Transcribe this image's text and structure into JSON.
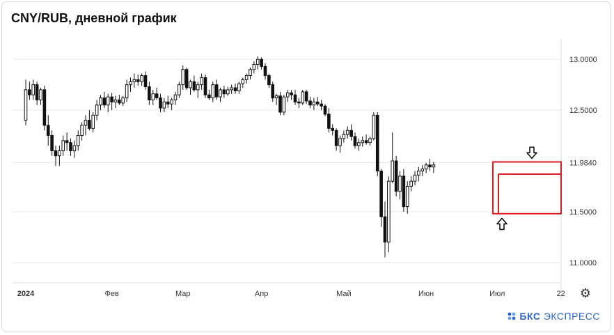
{
  "title": "CNY/RUB, дневной график",
  "brand": {
    "prefix": "БКС",
    "suffix": "ЭКСПРЕСС",
    "color": "#2d66c8"
  },
  "colors": {
    "candle": "#111111",
    "highlight": "#e01b24",
    "grid": "#e6e6e6",
    "axis_text": "#333333"
  },
  "icons": {
    "settings": "gear-icon",
    "arrow_down": "arrow-down-icon",
    "arrow_up": "arrow-up-icon",
    "brand_logo": "bks-logo-icon"
  },
  "chart_data": {
    "type": "candlestick",
    "title": "CNY/RUB, дневной график",
    "y_axis": {
      "position": "right",
      "ticks": [
        13.0,
        12.5,
        11.984,
        11.5,
        11.0
      ],
      "tick_labels": [
        "13.0000",
        "12.5000",
        "11.9840",
        "11.5000",
        "11.0000"
      ],
      "ylim": [
        10.8,
        13.2
      ]
    },
    "x_axis": {
      "tick_labels": [
        "2024",
        "Фев",
        "Мар",
        "Апр",
        "Май",
        "Июн",
        "Июл",
        "22"
      ],
      "tick_index": [
        0,
        23,
        42,
        63,
        85,
        107,
        126,
        143
      ]
    },
    "ohlc": [
      [
        12.4,
        12.8,
        12.35,
        12.7
      ],
      [
        12.7,
        12.78,
        12.6,
        12.65
      ],
      [
        12.65,
        12.8,
        12.6,
        12.75
      ],
      [
        12.75,
        12.78,
        12.55,
        12.6
      ],
      [
        12.6,
        12.72,
        12.55,
        12.7
      ],
      [
        12.7,
        12.74,
        12.3,
        12.35
      ],
      [
        12.35,
        12.45,
        12.15,
        12.25
      ],
      [
        12.25,
        12.3,
        12.05,
        12.1
      ],
      [
        12.1,
        12.15,
        11.95,
        12.05
      ],
      [
        12.05,
        12.15,
        11.95,
        12.1
      ],
      [
        12.1,
        12.25,
        12.05,
        12.2
      ],
      [
        12.2,
        12.28,
        12.1,
        12.18
      ],
      [
        12.18,
        12.22,
        12.05,
        12.1
      ],
      [
        12.1,
        12.2,
        12.03,
        12.15
      ],
      [
        12.15,
        12.3,
        12.1,
        12.25
      ],
      [
        12.25,
        12.38,
        12.2,
        12.35
      ],
      [
        12.35,
        12.45,
        12.25,
        12.4
      ],
      [
        12.4,
        12.5,
        12.3,
        12.32
      ],
      [
        12.32,
        12.48,
        12.28,
        12.45
      ],
      [
        12.45,
        12.6,
        12.4,
        12.55
      ],
      [
        12.55,
        12.65,
        12.5,
        12.62
      ],
      [
        12.62,
        12.68,
        12.52,
        12.55
      ],
      [
        12.55,
        12.66,
        12.48,
        12.63
      ],
      [
        12.63,
        12.67,
        12.5,
        12.58
      ],
      [
        12.58,
        12.64,
        12.52,
        12.6
      ],
      [
        12.6,
        12.65,
        12.55,
        12.57
      ],
      [
        12.57,
        12.64,
        12.54,
        12.62
      ],
      [
        12.62,
        12.8,
        12.58,
        12.75
      ],
      [
        12.75,
        12.82,
        12.68,
        12.78
      ],
      [
        12.78,
        12.86,
        12.72,
        12.8
      ],
      [
        12.8,
        12.85,
        12.74,
        12.78
      ],
      [
        12.78,
        12.86,
        12.74,
        12.84
      ],
      [
        12.84,
        12.88,
        12.7,
        12.73
      ],
      [
        12.73,
        12.78,
        12.55,
        12.6
      ],
      [
        12.6,
        12.7,
        12.55,
        12.66
      ],
      [
        12.66,
        12.72,
        12.6,
        12.62
      ],
      [
        12.62,
        12.66,
        12.48,
        12.52
      ],
      [
        12.52,
        12.62,
        12.48,
        12.58
      ],
      [
        12.58,
        12.64,
        12.52,
        12.56
      ],
      [
        12.56,
        12.62,
        12.5,
        12.6
      ],
      [
        12.6,
        12.68,
        12.55,
        12.65
      ],
      [
        12.65,
        12.78,
        12.62,
        12.75
      ],
      [
        12.75,
        12.94,
        12.7,
        12.9
      ],
      [
        12.9,
        12.92,
        12.7,
        12.72
      ],
      [
        12.72,
        12.8,
        12.65,
        12.78
      ],
      [
        12.78,
        12.84,
        12.68,
        12.7
      ],
      [
        12.7,
        12.78,
        12.62,
        12.75
      ],
      [
        12.75,
        12.86,
        12.7,
        12.82
      ],
      [
        12.82,
        12.85,
        12.62,
        12.65
      ],
      [
        12.65,
        12.7,
        12.6,
        12.62
      ],
      [
        12.62,
        12.78,
        12.58,
        12.75
      ],
      [
        12.75,
        12.8,
        12.6,
        12.63
      ],
      [
        12.63,
        12.72,
        12.58,
        12.7
      ],
      [
        12.7,
        12.74,
        12.62,
        12.66
      ],
      [
        12.66,
        12.73,
        12.64,
        12.7
      ],
      [
        12.7,
        12.75,
        12.66,
        12.72
      ],
      [
        12.72,
        12.76,
        12.66,
        12.69
      ],
      [
        12.69,
        12.78,
        12.66,
        12.76
      ],
      [
        12.76,
        12.82,
        12.72,
        12.8
      ],
      [
        12.8,
        12.86,
        12.76,
        12.84
      ],
      [
        12.84,
        12.92,
        12.8,
        12.9
      ],
      [
        12.9,
        12.98,
        12.86,
        12.95
      ],
      [
        12.95,
        13.03,
        12.9,
        13.0
      ],
      [
        13.0,
        13.02,
        12.9,
        12.93
      ],
      [
        12.93,
        12.96,
        12.8,
        12.84
      ],
      [
        12.84,
        12.86,
        12.72,
        12.75
      ],
      [
        12.75,
        12.78,
        12.58,
        12.62
      ],
      [
        12.62,
        12.66,
        12.55,
        12.64
      ],
      [
        12.64,
        12.68,
        12.45,
        12.48
      ],
      [
        12.48,
        12.65,
        12.45,
        12.63
      ],
      [
        12.63,
        12.7,
        12.58,
        12.67
      ],
      [
        12.67,
        12.7,
        12.6,
        12.65
      ],
      [
        12.65,
        12.7,
        12.55,
        12.58
      ],
      [
        12.58,
        12.62,
        12.52,
        12.57
      ],
      [
        12.57,
        12.7,
        12.55,
        12.68
      ],
      [
        12.68,
        12.7,
        12.56,
        12.59
      ],
      [
        12.59,
        12.63,
        12.52,
        12.55
      ],
      [
        12.55,
        12.62,
        12.5,
        12.58
      ],
      [
        12.58,
        12.63,
        12.54,
        12.56
      ],
      [
        12.56,
        12.6,
        12.5,
        12.54
      ],
      [
        12.54,
        12.56,
        12.44,
        12.46
      ],
      [
        12.46,
        12.52,
        12.28,
        12.32
      ],
      [
        12.32,
        12.36,
        12.25,
        12.3
      ],
      [
        12.3,
        12.32,
        12.1,
        12.15
      ],
      [
        12.15,
        12.25,
        12.08,
        12.22
      ],
      [
        12.22,
        12.3,
        12.18,
        12.26
      ],
      [
        12.26,
        12.34,
        12.22,
        12.3
      ],
      [
        12.3,
        12.36,
        12.2,
        12.24
      ],
      [
        12.24,
        12.28,
        12.12,
        12.15
      ],
      [
        12.15,
        12.22,
        12.1,
        12.18
      ],
      [
        12.18,
        12.24,
        12.14,
        12.2
      ],
      [
        12.2,
        12.26,
        12.16,
        12.18
      ],
      [
        12.18,
        12.24,
        12.15,
        12.22
      ],
      [
        12.22,
        12.48,
        12.2,
        12.45
      ],
      [
        12.45,
        12.48,
        11.85,
        11.9
      ],
      [
        11.9,
        11.92,
        11.35,
        11.45
      ],
      [
        11.45,
        11.6,
        11.05,
        11.2
      ],
      [
        11.2,
        11.85,
        11.1,
        11.8
      ],
      [
        11.8,
        12.28,
        11.78,
        12.0
      ],
      [
        12.0,
        12.05,
        11.65,
        11.7
      ],
      [
        11.7,
        11.9,
        11.62,
        11.85
      ],
      [
        11.85,
        11.92,
        11.5,
        11.55
      ],
      [
        11.55,
        11.8,
        11.48,
        11.75
      ],
      [
        11.75,
        11.85,
        11.7,
        11.8
      ],
      [
        11.8,
        11.9,
        11.76,
        11.86
      ],
      [
        11.86,
        11.94,
        11.8,
        11.9
      ],
      [
        11.9,
        11.96,
        11.85,
        11.92
      ],
      [
        11.92,
        11.98,
        11.88,
        11.96
      ],
      [
        11.96,
        12.02,
        11.9,
        11.94
      ],
      [
        11.94,
        11.99,
        11.88,
        11.96
      ]
    ],
    "highlight_box": {
      "y_top": 11.99,
      "y_bottom": 11.48,
      "y_divider": 11.87
    },
    "annotations": [
      {
        "type": "arrow-down",
        "y": 12.08
      },
      {
        "type": "arrow-up",
        "y": 11.38
      }
    ],
    "grid": "horizontal"
  }
}
